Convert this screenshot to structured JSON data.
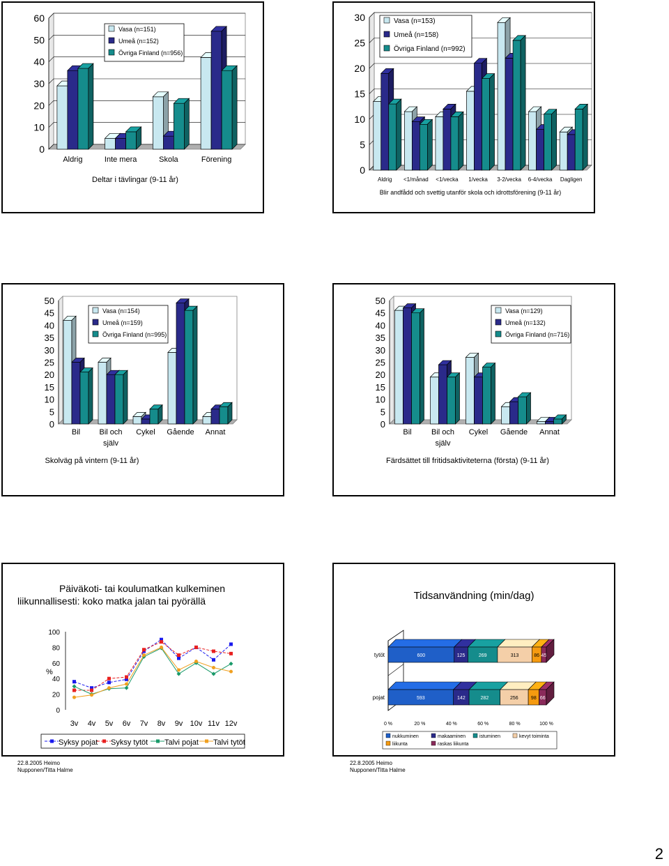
{
  "chart_data": [
    {
      "type": "bar",
      "title": "Deltar i tävlingar (9-11 år)",
      "categories": [
        "Aldrig",
        "Inte mera",
        "Skola",
        "Förening"
      ],
      "series": [
        {
          "name": "Vasa (n=151)",
          "values": [
            29,
            5,
            24,
            42
          ]
        },
        {
          "name": "Umeå (n=152)",
          "values": [
            36,
            5,
            6,
            54
          ]
        },
        {
          "name": "Övriga Finland (n=956)",
          "values": [
            37,
            8,
            21,
            36
          ]
        }
      ],
      "ylim": [
        0,
        60
      ],
      "yticks": [
        0,
        10,
        20,
        30,
        40,
        50,
        60
      ],
      "legend": "top-left",
      "grid": true
    },
    {
      "type": "bar",
      "title": "Blir andfådd och svettig utanför skola och idrottsförening (9-11 år)",
      "categories": [
        "Aldrig",
        "<1/månad",
        "<1/vecka",
        "1/vecka",
        "3-2/vecka",
        "6-4/vecka",
        "Dagligen"
      ],
      "series": [
        {
          "name": "Vasa (n=153)",
          "values": [
            13.5,
            11.5,
            10.5,
            15.5,
            29,
            11.5,
            7.5
          ]
        },
        {
          "name": "Umeå (n=158)",
          "values": [
            19,
            9.5,
            12,
            21,
            22,
            8,
            7
          ]
        },
        {
          "name": "Övriga Finland (n=992)",
          "values": [
            13,
            9,
            10.5,
            18,
            25.5,
            11,
            12
          ]
        }
      ],
      "ylim": [
        0,
        30
      ],
      "yticks": [
        0,
        5,
        10,
        15,
        20,
        25,
        30
      ],
      "legend": "top-left",
      "grid": true
    },
    {
      "type": "bar",
      "title": "Skolväg på vintern (9-11 år)",
      "categories": [
        "Bil",
        "Bil och\nsjälv",
        "Cykel",
        "Gående",
        "Annat"
      ],
      "series": [
        {
          "name": "Vasa (n=154)",
          "values": [
            42,
            25,
            3,
            29,
            3
          ]
        },
        {
          "name": "Umeå (n=159)",
          "values": [
            25,
            20,
            2,
            49,
            6
          ]
        },
        {
          "name": "Övriga Finland (n=995)",
          "values": [
            21,
            20,
            6,
            46,
            7
          ]
        }
      ],
      "ylim": [
        0,
        50
      ],
      "yticks": [
        0,
        5,
        10,
        15,
        20,
        25,
        30,
        35,
        40,
        45,
        50
      ],
      "legend": "top-left",
      "grid": false
    },
    {
      "type": "bar",
      "title": "Färdsättet till fritidsaktiviteterna (första) (9-11 år)",
      "categories": [
        "Bil",
        "Bil och\nsjälv",
        "Cykel",
        "Gående",
        "Annat"
      ],
      "series": [
        {
          "name": "Vasa (n=129)",
          "values": [
            46,
            19,
            27,
            7,
            1
          ]
        },
        {
          "name": "Umeå (n=132)",
          "values": [
            47,
            24,
            19,
            9,
            1
          ]
        },
        {
          "name": "Övriga Finland (n=716)",
          "values": [
            45,
            19,
            23,
            11,
            2
          ]
        }
      ],
      "ylim": [
        0,
        50
      ],
      "yticks": [
        0,
        5,
        10,
        15,
        20,
        25,
        30,
        35,
        40,
        45,
        50
      ],
      "legend": "top-right",
      "grid": false
    },
    {
      "type": "line",
      "title": "Päiväkoti- tai koulumatkan kulkeminen liikunnallisesti: koko matka jalan tai pyörällä",
      "ylabel": "%",
      "categories": [
        "3v",
        "4v",
        "5v",
        "6v",
        "7v",
        "8v",
        "9v",
        "10v",
        "11v",
        "12v"
      ],
      "series": [
        {
          "name": "Syksy pojat",
          "values": [
            36,
            28,
            35,
            39,
            75,
            90,
            66,
            80,
            64,
            84
          ]
        },
        {
          "name": "Syksy tytöt",
          "values": [
            25,
            25,
            40,
            42,
            77,
            87,
            70,
            80,
            75,
            72
          ]
        },
        {
          "name": "Talvi pojat",
          "values": [
            30,
            20,
            27,
            28,
            68,
            79,
            46,
            60,
            46,
            59
          ]
        },
        {
          "name": "Talvi tytöt",
          "values": [
            16,
            19,
            28,
            33,
            70,
            80,
            51,
            62,
            54,
            49
          ]
        }
      ],
      "ylim": [
        0,
        100
      ],
      "yticks": [
        0,
        20,
        40,
        60,
        80,
        100
      ],
      "legend": "bottom"
    },
    {
      "type": "bar",
      "stacked": "percent",
      "title": "Tidsanvändning (min/dag)",
      "categories": [
        "tytöt",
        "pojat"
      ],
      "series": [
        {
          "name": "nukkuminen",
          "values": [
            600,
            593
          ]
        },
        {
          "name": "makaaminen",
          "values": [
            125,
            142
          ]
        },
        {
          "name": "istuminen",
          "values": [
            269,
            282
          ]
        },
        {
          "name": "kevyt toiminta",
          "values": [
            313,
            256
          ]
        },
        {
          "name": "liikunta",
          "values": [
            86,
            98
          ]
        },
        {
          "name": "raskas liikunta",
          "values": [
            45,
            66
          ]
        }
      ],
      "xticks": [
        "0 %",
        "20 %",
        "40 %",
        "60 %",
        "80 %",
        "100 %"
      ],
      "legend": "bottom"
    }
  ],
  "footers": {
    "left": [
      "22.8.2005 Heimo",
      "Nupponen/Titta Halme"
    ],
    "right": [
      "22.8.2005 Heimo",
      "Nupponen/Titta Halme"
    ]
  },
  "page_number": "2",
  "colors": {
    "vasa": "#c8e8f0",
    "umea": "#2a2a8a",
    "ovriga": "#158c8c",
    "line": [
      "#1a1aee",
      "#e82020",
      "#1a9a6a",
      "#f0a020"
    ],
    "stack": [
      "#1f5fc8",
      "#2a2a8a",
      "#158c8c",
      "#f4cfa8",
      "#f59a10",
      "#8a2a5a"
    ]
  }
}
